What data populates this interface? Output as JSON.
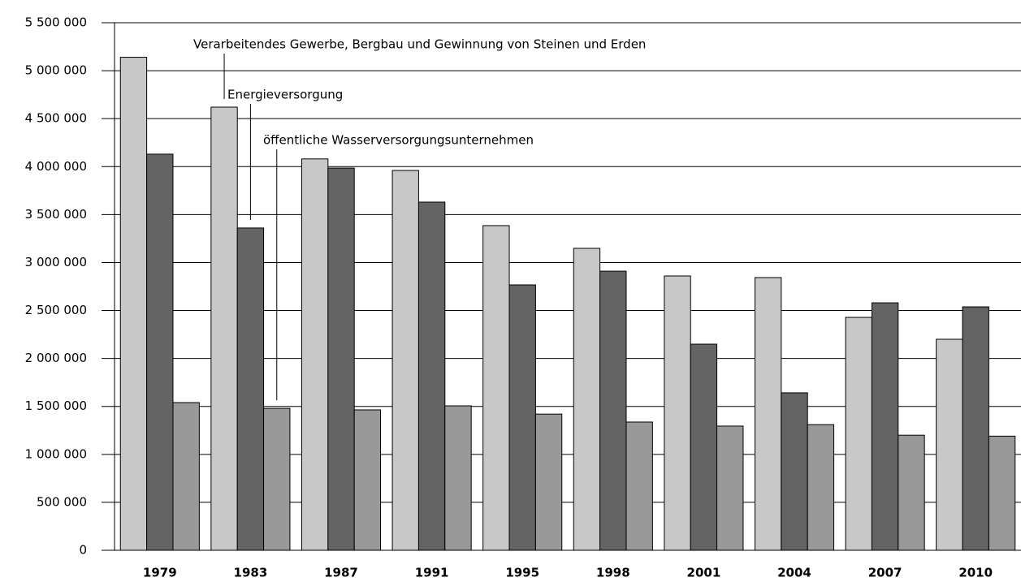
{
  "chart_data": {
    "type": "bar",
    "categories": [
      "1979",
      "1983",
      "1987",
      "1991",
      "1995",
      "1998",
      "2001",
      "2004",
      "2007",
      "2010"
    ],
    "series": [
      {
        "name": "Verarbeitendes Gewerbe, Bergbau und Gewinnung von Steinen und Erden",
        "color": "#c8c8c8",
        "values": [
          5140000,
          4620000,
          4080000,
          3960000,
          3385000,
          3148000,
          2860000,
          2843000,
          2428000,
          2200000
        ]
      },
      {
        "name": "Energieversorgung",
        "color": "#646464",
        "values": [
          4130000,
          3360000,
          3985000,
          3630000,
          2767000,
          2910000,
          2149000,
          1642000,
          2580000,
          2538000
        ]
      },
      {
        "name": "öffentliche Wasserversorgungsunternehmen",
        "color": "#999999",
        "values": [
          1540000,
          1480000,
          1464000,
          1506000,
          1420000,
          1337000,
          1295000,
          1310000,
          1200000,
          1190000
        ]
      }
    ],
    "ylim": [
      0,
      5500000
    ],
    "yticks": [
      0,
      {
        "value": 500000,
        "label": "500 000"
      },
      {
        "value": 1000000,
        "label": "1 000 000"
      },
      {
        "value": 1500000,
        "label": "1 500 000"
      },
      {
        "value": 2000000,
        "label": "2 000 000"
      },
      {
        "value": 2500000,
        "label": "2 500 000"
      },
      {
        "value": 3000000,
        "label": "3 000 000"
      },
      {
        "value": 3500000,
        "label": "3 500 000"
      },
      {
        "value": 4000000,
        "label": "4 000 000"
      },
      {
        "value": 4500000,
        "label": "4 500 000"
      },
      {
        "value": 5000000,
        "label": "5 000 000"
      },
      {
        "value": 5500000,
        "label": "5 500 000"
      }
    ],
    "grid": true
  }
}
